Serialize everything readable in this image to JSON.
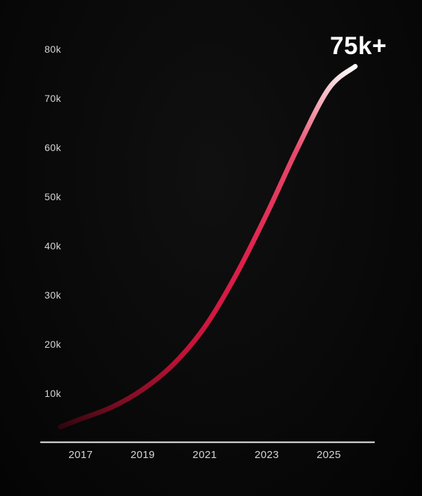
{
  "chart_data": {
    "type": "line",
    "title": "",
    "annotation": "75k+",
    "series": [
      {
        "name": "growth-curve",
        "x": [
          2016.35,
          2017,
          2018,
          2019,
          2020,
          2021,
          2022,
          2023,
          2024,
          2025,
          2025.85
        ],
        "values": [
          3200,
          4800,
          7200,
          10800,
          16000,
          23500,
          34000,
          46500,
          60000,
          72000,
          76500
        ]
      }
    ],
    "xlabel": "",
    "ylabel": "",
    "xlim": [
      2016.35,
      2025.85
    ],
    "ylim": [
      0,
      85000
    ],
    "grid": false,
    "legend": "none",
    "yticks": [
      {
        "value": 10000,
        "label": "10k"
      },
      {
        "value": 20000,
        "label": "20k"
      },
      {
        "value": 30000,
        "label": "30k"
      },
      {
        "value": 40000,
        "label": "40k"
      },
      {
        "value": 50000,
        "label": "50k"
      },
      {
        "value": 60000,
        "label": "60k"
      },
      {
        "value": 70000,
        "label": "70k"
      },
      {
        "value": 80000,
        "label": "80k"
      }
    ],
    "xticks": [
      {
        "value": 2017,
        "label": "2017"
      },
      {
        "value": 2019,
        "label": "2019"
      },
      {
        "value": 2021,
        "label": "2021"
      },
      {
        "value": 2023,
        "label": "2023"
      },
      {
        "value": 2025,
        "label": "2025"
      }
    ],
    "line_gradient": [
      {
        "offset": 0.0,
        "color": "#30060e"
      },
      {
        "offset": 0.12,
        "color": "#7c0d22"
      },
      {
        "offset": 0.3,
        "color": "#c41338"
      },
      {
        "offset": 0.55,
        "color": "#e0234e"
      },
      {
        "offset": 0.78,
        "color": "#e84a6c"
      },
      {
        "offset": 0.9,
        "color": "#f5b3c0"
      },
      {
        "offset": 1.0,
        "color": "#ffffff"
      }
    ],
    "colors": {
      "background": "#0a0a0a",
      "axis": "#ededed",
      "tick_text": "#d6d6d6",
      "annotation_text": "#ffffff"
    }
  }
}
